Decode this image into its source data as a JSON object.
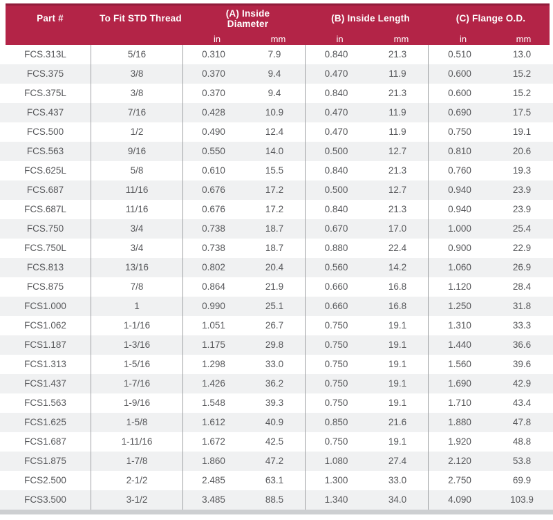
{
  "colors": {
    "header_bg": "#b32447",
    "header_top_line": "#901d3b",
    "alt_row_bg": "#f0f1f2",
    "divider": "#9d9fa2",
    "text": "#56575a",
    "bottom_strip": "#cdcfd1"
  },
  "header": {
    "part_label": "Part #",
    "thread_label": "To Fit STD Thread",
    "group_a_label": "(A) Inside Diameter",
    "group_b_label": "(B) Inside Length",
    "group_c_label": "(C) Flange O.D.",
    "unit_in": "in",
    "unit_mm": "mm"
  },
  "table": {
    "column_keys": [
      "part",
      "thread",
      "a_in",
      "a_mm",
      "b_in",
      "b_mm",
      "c_in",
      "c_mm"
    ],
    "rows": [
      {
        "part": "FCS.313L",
        "thread": "5/16",
        "a_in": "0.310",
        "a_mm": "7.9",
        "b_in": "0.840",
        "b_mm": "21.3",
        "c_in": "0.510",
        "c_mm": "13.0"
      },
      {
        "part": "FCS.375",
        "thread": "3/8",
        "a_in": "0.370",
        "a_mm": "9.4",
        "b_in": "0.470",
        "b_mm": "11.9",
        "c_in": "0.600",
        "c_mm": "15.2"
      },
      {
        "part": "FCS.375L",
        "thread": "3/8",
        "a_in": "0.370",
        "a_mm": "9.4",
        "b_in": "0.840",
        "b_mm": "21.3",
        "c_in": "0.600",
        "c_mm": "15.2"
      },
      {
        "part": "FCS.437",
        "thread": "7/16",
        "a_in": "0.428",
        "a_mm": "10.9",
        "b_in": "0.470",
        "b_mm": "11.9",
        "c_in": "0.690",
        "c_mm": "17.5"
      },
      {
        "part": "FCS.500",
        "thread": "1/2",
        "a_in": "0.490",
        "a_mm": "12.4",
        "b_in": "0.470",
        "b_mm": "11.9",
        "c_in": "0.750",
        "c_mm": "19.1"
      },
      {
        "part": "FCS.563",
        "thread": "9/16",
        "a_in": "0.550",
        "a_mm": "14.0",
        "b_in": "0.500",
        "b_mm": "12.7",
        "c_in": "0.810",
        "c_mm": "20.6"
      },
      {
        "part": "FCS.625L",
        "thread": "5/8",
        "a_in": "0.610",
        "a_mm": "15.5",
        "b_in": "0.840",
        "b_mm": "21.3",
        "c_in": "0.760",
        "c_mm": "19.3"
      },
      {
        "part": "FCS.687",
        "thread": "11/16",
        "a_in": "0.676",
        "a_mm": "17.2",
        "b_in": "0.500",
        "b_mm": "12.7",
        "c_in": "0.940",
        "c_mm": "23.9"
      },
      {
        "part": "FCS.687L",
        "thread": "11/16",
        "a_in": "0.676",
        "a_mm": "17.2",
        "b_in": "0.840",
        "b_mm": "21.3",
        "c_in": "0.940",
        "c_mm": "23.9"
      },
      {
        "part": "FCS.750",
        "thread": "3/4",
        "a_in": "0.738",
        "a_mm": "18.7",
        "b_in": "0.670",
        "b_mm": "17.0",
        "c_in": "1.000",
        "c_mm": "25.4"
      },
      {
        "part": "FCS.750L",
        "thread": "3/4",
        "a_in": "0.738",
        "a_mm": "18.7",
        "b_in": "0.880",
        "b_mm": "22.4",
        "c_in": "0.900",
        "c_mm": "22.9"
      },
      {
        "part": "FCS.813",
        "thread": "13/16",
        "a_in": "0.802",
        "a_mm": "20.4",
        "b_in": "0.560",
        "b_mm": "14.2",
        "c_in": "1.060",
        "c_mm": "26.9"
      },
      {
        "part": "FCS.875",
        "thread": "7/8",
        "a_in": "0.864",
        "a_mm": "21.9",
        "b_in": "0.660",
        "b_mm": "16.8",
        "c_in": "1.120",
        "c_mm": "28.4"
      },
      {
        "part": "FCS1.000",
        "thread": "1",
        "a_in": "0.990",
        "a_mm": "25.1",
        "b_in": "0.660",
        "b_mm": "16.8",
        "c_in": "1.250",
        "c_mm": "31.8"
      },
      {
        "part": "FCS1.062",
        "thread": "1-1/16",
        "a_in": "1.051",
        "a_mm": "26.7",
        "b_in": "0.750",
        "b_mm": "19.1",
        "c_in": "1.310",
        "c_mm": "33.3"
      },
      {
        "part": "FCS1.187",
        "thread": "1-3/16",
        "a_in": "1.175",
        "a_mm": "29.8",
        "b_in": "0.750",
        "b_mm": "19.1",
        "c_in": "1.440",
        "c_mm": "36.6"
      },
      {
        "part": "FCS1.313",
        "thread": "1-5/16",
        "a_in": "1.298",
        "a_mm": "33.0",
        "b_in": "0.750",
        "b_mm": "19.1",
        "c_in": "1.560",
        "c_mm": "39.6"
      },
      {
        "part": "FCS1.437",
        "thread": "1-7/16",
        "a_in": "1.426",
        "a_mm": "36.2",
        "b_in": "0.750",
        "b_mm": "19.1",
        "c_in": "1.690",
        "c_mm": "42.9"
      },
      {
        "part": "FCS1.563",
        "thread": "1-9/16",
        "a_in": "1.548",
        "a_mm": "39.3",
        "b_in": "0.750",
        "b_mm": "19.1",
        "c_in": "1.710",
        "c_mm": "43.4"
      },
      {
        "part": "FCS1.625",
        "thread": "1-5/8",
        "a_in": "1.612",
        "a_mm": "40.9",
        "b_in": "0.850",
        "b_mm": "21.6",
        "c_in": "1.880",
        "c_mm": "47.8"
      },
      {
        "part": "FCS1.687",
        "thread": "1-11/16",
        "a_in": "1.672",
        "a_mm": "42.5",
        "b_in": "0.750",
        "b_mm": "19.1",
        "c_in": "1.920",
        "c_mm": "48.8"
      },
      {
        "part": "FCS1.875",
        "thread": "1-7/8",
        "a_in": "1.860",
        "a_mm": "47.2",
        "b_in": "1.080",
        "b_mm": "27.4",
        "c_in": "2.120",
        "c_mm": "53.8"
      },
      {
        "part": "FCS2.500",
        "thread": "2-1/2",
        "a_in": "2.485",
        "a_mm": "63.1",
        "b_in": "1.300",
        "b_mm": "33.0",
        "c_in": "2.750",
        "c_mm": "69.9"
      },
      {
        "part": "FCS3.500",
        "thread": "3-1/2",
        "a_in": "3.485",
        "a_mm": "88.5",
        "b_in": "1.340",
        "b_mm": "34.0",
        "c_in": "4.090",
        "c_mm": "103.9"
      }
    ]
  }
}
